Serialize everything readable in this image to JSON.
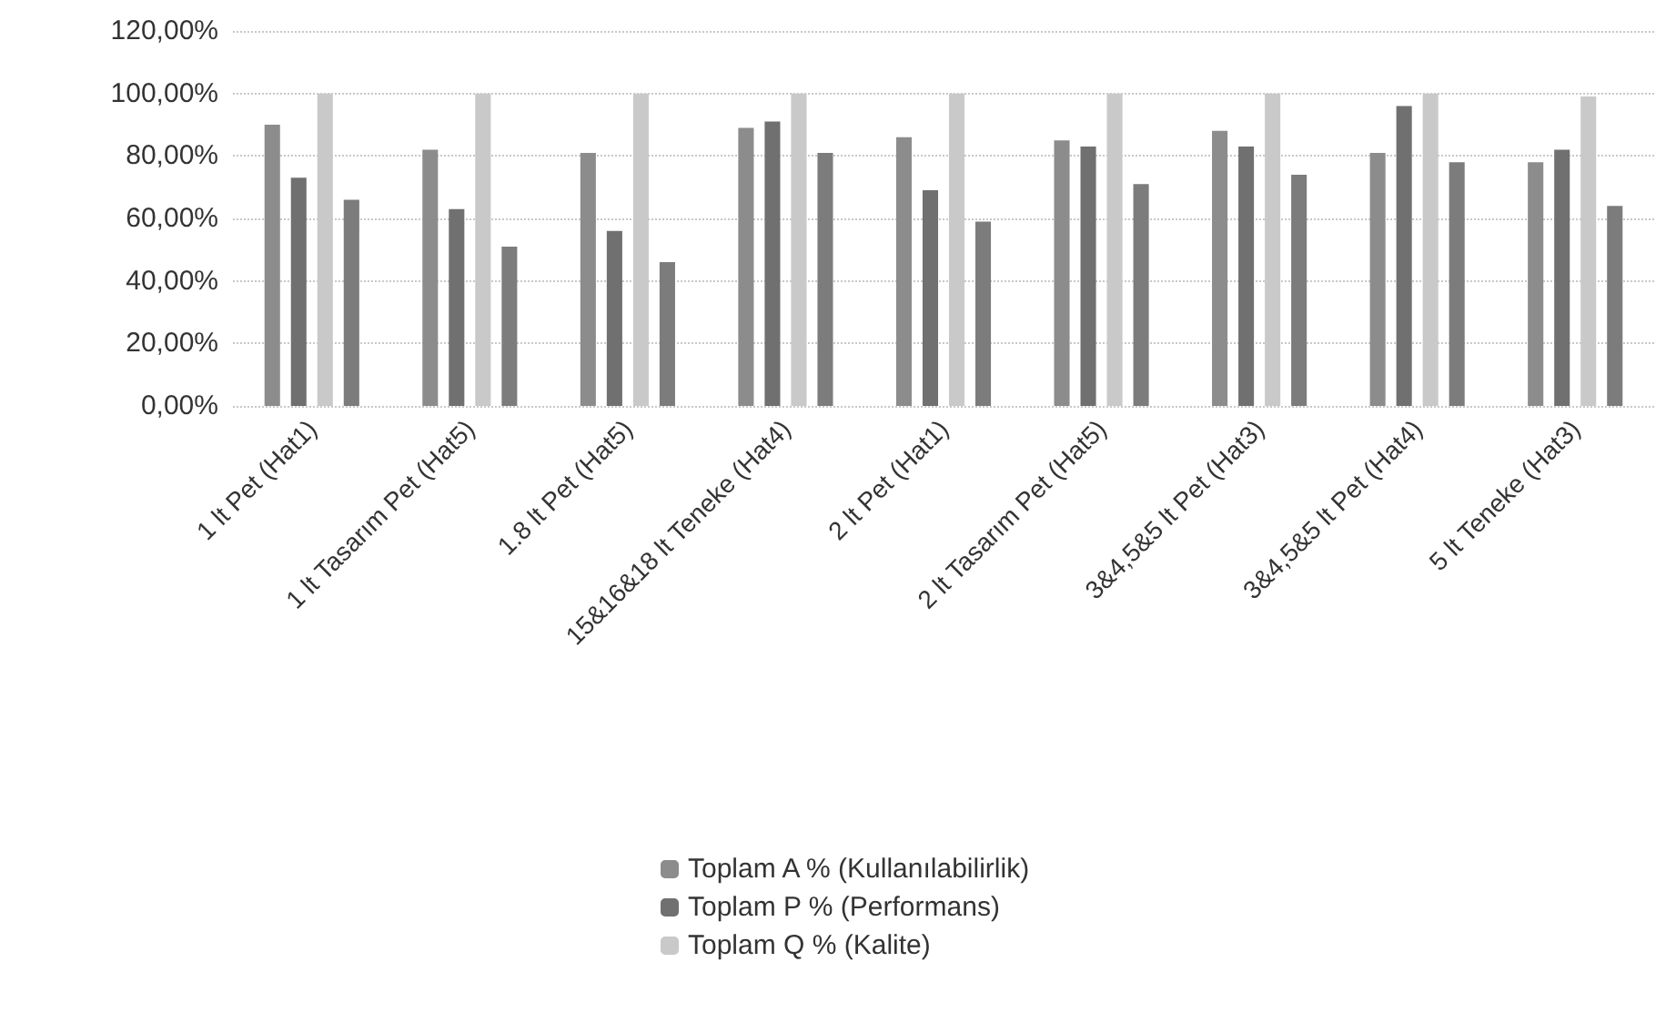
{
  "chart_data": {
    "type": "bar",
    "categories": [
      "1 lt Pet (Hat1)",
      "1 lt Tasarım Pet (Hat5)",
      "1.8 lt Pet (Hat5)",
      "15&16&18 lt Teneke (Hat4)",
      "2 lt Pet (Hat1)",
      "2 lt Tasarım Pet (Hat5)",
      "3&4,5&5 lt Pet (Hat3)",
      "3&4,5&5 lt Pet (Hat4)",
      "5 lt Teneke (Hat3)"
    ],
    "series": [
      {
        "name": "Toplam A % (Kullanılabilirlik)",
        "color": "#8c8c8c",
        "values": [
          90,
          82,
          81,
          89,
          86,
          85,
          88,
          81,
          78
        ]
      },
      {
        "name": "Toplam P % (Performans)",
        "color": "#707070",
        "values": [
          73,
          63,
          56,
          91,
          69,
          83,
          83,
          96,
          82
        ]
      },
      {
        "name": "Toplam Q % (Kalite)",
        "color": "#c9c9c9",
        "values": [
          100,
          100,
          100,
          100,
          100,
          100,
          100,
          100,
          99
        ]
      },
      {
        "color": "#7c7c7c",
        "values": [
          66,
          51,
          46,
          81,
          59,
          71,
          74,
          78,
          64
        ]
      }
    ],
    "ylim": [
      0,
      120
    ],
    "yticks": [
      {
        "value": 0,
        "label": "0,00%"
      },
      {
        "value": 20,
        "label": "20,00%"
      },
      {
        "value": 40,
        "label": "40,00%"
      },
      {
        "value": 60,
        "label": "60,00%"
      },
      {
        "value": 80,
        "label": "80,00%"
      },
      {
        "value": 100,
        "label": "100,00%"
      },
      {
        "value": 120,
        "label": "120,00%"
      }
    ],
    "grid": true,
    "legend": "bottom"
  }
}
